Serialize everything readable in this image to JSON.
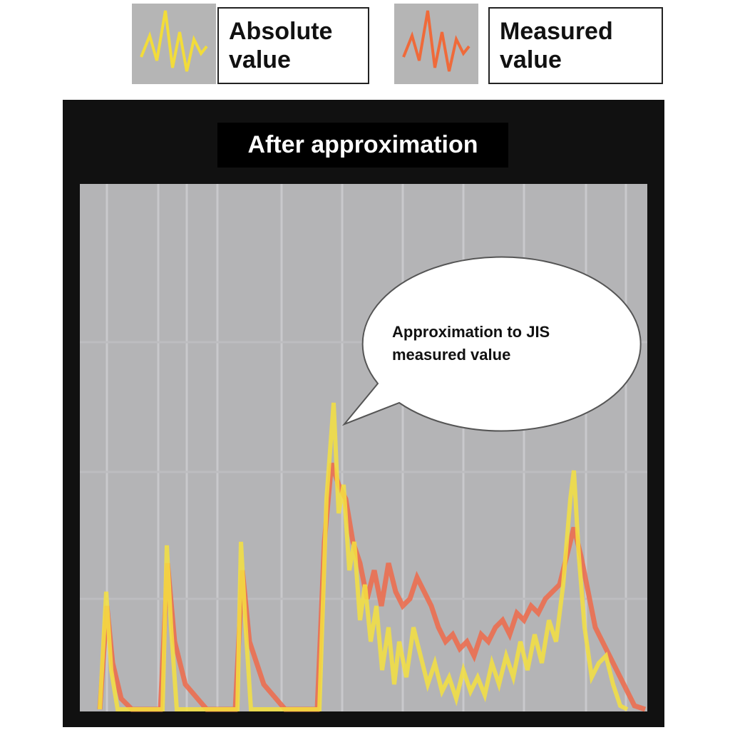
{
  "legend": [
    {
      "label": "Absolute value"
    },
    {
      "label": "Measured value"
    }
  ],
  "panel": {
    "title": "After approximation",
    "callout": "Approximation to JIS measured value"
  }
}
